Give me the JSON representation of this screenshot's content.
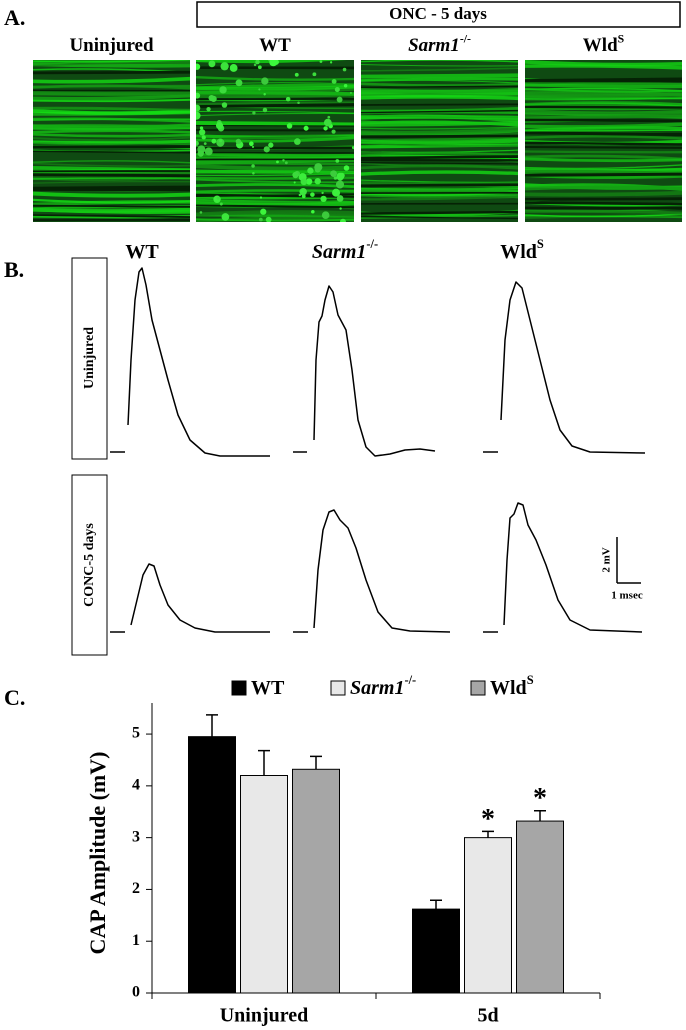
{
  "panel_a": {
    "label": "A.",
    "group_label": "ONC - 5 days",
    "columns": [
      {
        "text": "Uninjured"
      },
      {
        "text": "WT"
      },
      {
        "text": "Sarm1",
        "sup": "-/-",
        "italic": true
      },
      {
        "text": "Wld",
        "sup": "S"
      }
    ]
  },
  "panel_b": {
    "label": "B.",
    "columns": [
      {
        "text": "WT"
      },
      {
        "text": "Sarm1",
        "sup": "-/-",
        "italic": true
      },
      {
        "text": "Wld",
        "sup": "S"
      }
    ],
    "rows": [
      "Uninjured",
      "CONC-5 days"
    ],
    "scale_bar": {
      "vertical": "2 mV",
      "horizontal": "1 msec"
    }
  },
  "chart_data": {
    "type": "bar",
    "label": "C.",
    "ylabel": "CAP Amplitude (mV)",
    "categories": [
      "Uninjured",
      "5d"
    ],
    "ylim": [
      0,
      5.6
    ],
    "yticks": [
      0,
      1,
      2,
      3,
      4,
      5
    ],
    "legend": "top",
    "series": [
      {
        "name": "WT",
        "color": "#000000",
        "values": [
          4.95,
          1.62
        ],
        "errors": [
          0.42,
          0.17
        ],
        "significance": [
          null,
          null
        ]
      },
      {
        "name": "Sarm1",
        "name_sup": "-/-",
        "italic": true,
        "color": "#e8e8e8",
        "values": [
          4.2,
          3.0
        ],
        "errors": [
          0.48,
          0.12
        ],
        "significance": [
          null,
          "*"
        ]
      },
      {
        "name": "Wld",
        "name_sup": "S",
        "color": "#a6a6a6",
        "values": [
          4.32,
          3.32
        ],
        "errors": [
          0.25,
          0.2
        ],
        "significance": [
          null,
          "*"
        ]
      }
    ]
  }
}
